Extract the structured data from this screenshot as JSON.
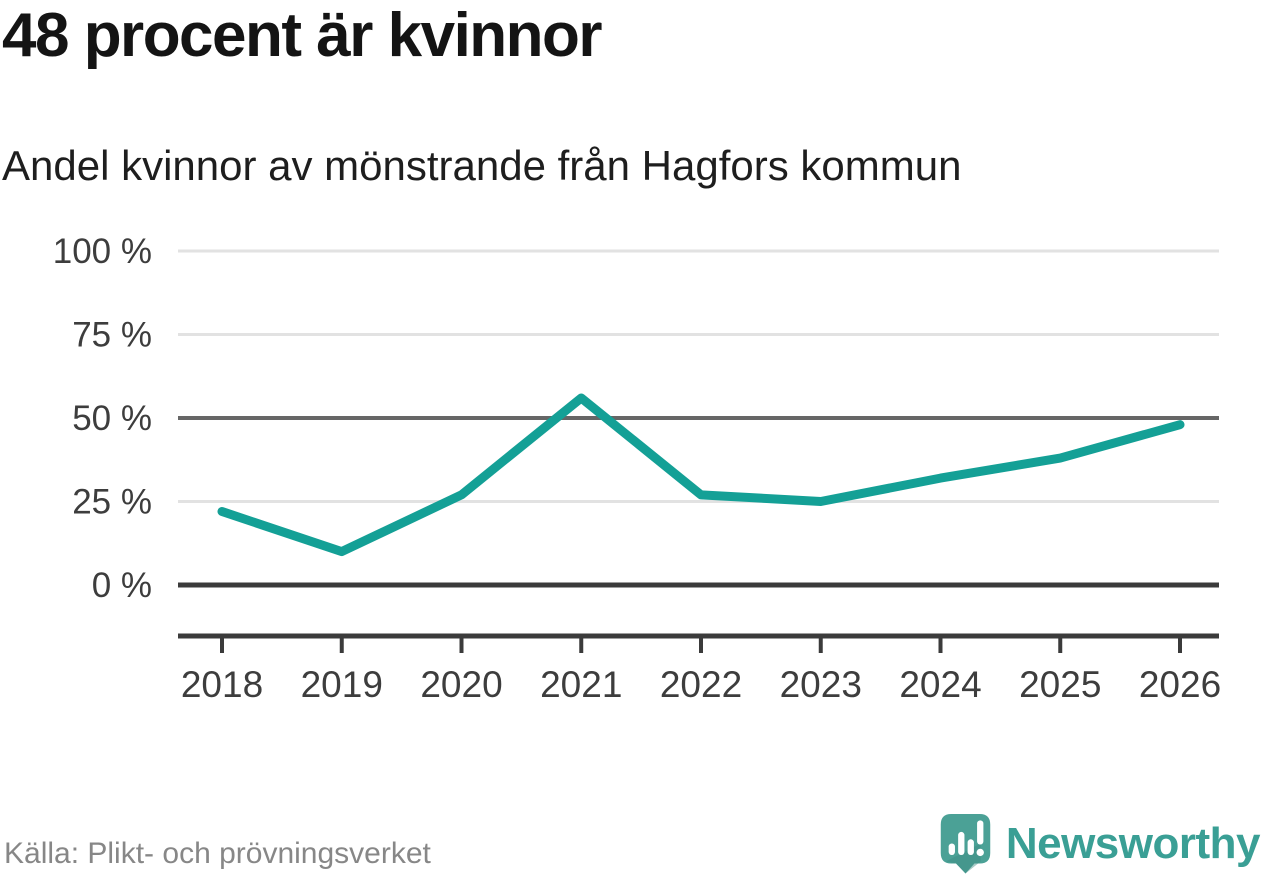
{
  "header": {
    "title": "48 procent är kvinnor",
    "subtitle": "Andel kvinnor av mönstrande från Hagfors kommun"
  },
  "chart_data": {
    "type": "line",
    "title": "48 procent är kvinnor",
    "subtitle": "Andel kvinnor av mönstrande från Hagfors kommun",
    "x": [
      2018,
      2019,
      2020,
      2021,
      2022,
      2023,
      2024,
      2025,
      2026
    ],
    "series": [
      {
        "name": "Andel kvinnor av mönstrande",
        "values": [
          22,
          10,
          27,
          56,
          27,
          25,
          32,
          38,
          48
        ]
      }
    ],
    "xlabel": "",
    "ylabel": "",
    "ylim": [
      0,
      100
    ],
    "yticks": [
      {
        "value": 0,
        "label": "0 %"
      },
      {
        "value": 25,
        "label": "25 %"
      },
      {
        "value": 50,
        "label": "50 %"
      },
      {
        "value": 75,
        "label": "75 %"
      },
      {
        "value": 100,
        "label": "100 %"
      }
    ],
    "grid": "horizontal",
    "emphasized_gridlines": [
      0,
      50
    ],
    "legend": "none",
    "line_color": "#14a096",
    "gridline_color_light": "#e2e2e2",
    "gridline_color_mid": "#666666",
    "axis_color": "#3b3b3b"
  },
  "footer": {
    "source": "Källa: Plikt- och prövningsverket",
    "brand": "Newsworthy",
    "brand_color": "#3a9f95",
    "logo_bubble_color": "#4ba196",
    "logo_shadow_color": "#3f8c82"
  }
}
